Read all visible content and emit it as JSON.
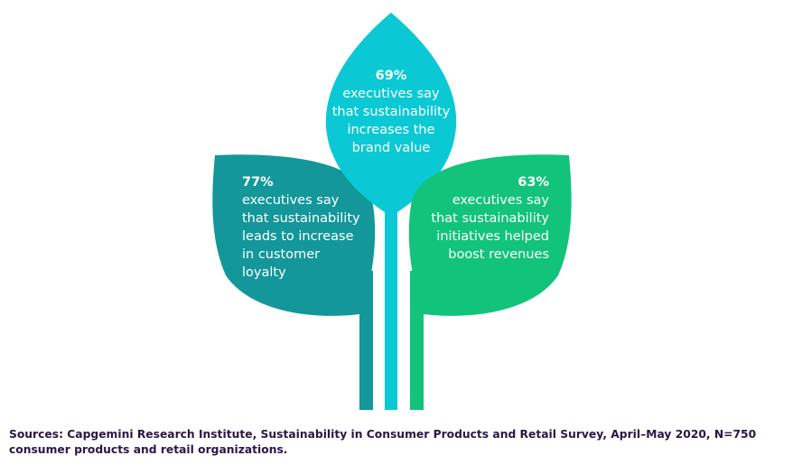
{
  "colors": {
    "left_leaf": "#13979a",
    "center_leaf": "#0bc9d4",
    "right_leaf": "#12c37c",
    "source_text": "#2a1746"
  },
  "leaves": {
    "left": {
      "percent": "77%",
      "text": "executives say\nthat sustainability\nleads to increase\nin customer\nloyalty"
    },
    "center": {
      "percent": "69%",
      "text": "executives say\nthat sustainability\nincreases the\nbrand value"
    },
    "right": {
      "percent": "63%",
      "text": "executives say\nthat sustainability\ninitiatives helped\nboost revenues"
    }
  },
  "source": "Sources: Capgemini Research Institute, Sustainability in Consumer Products and Retail Survey, April–May 2020, N=750 consumer products and retail organizations."
}
